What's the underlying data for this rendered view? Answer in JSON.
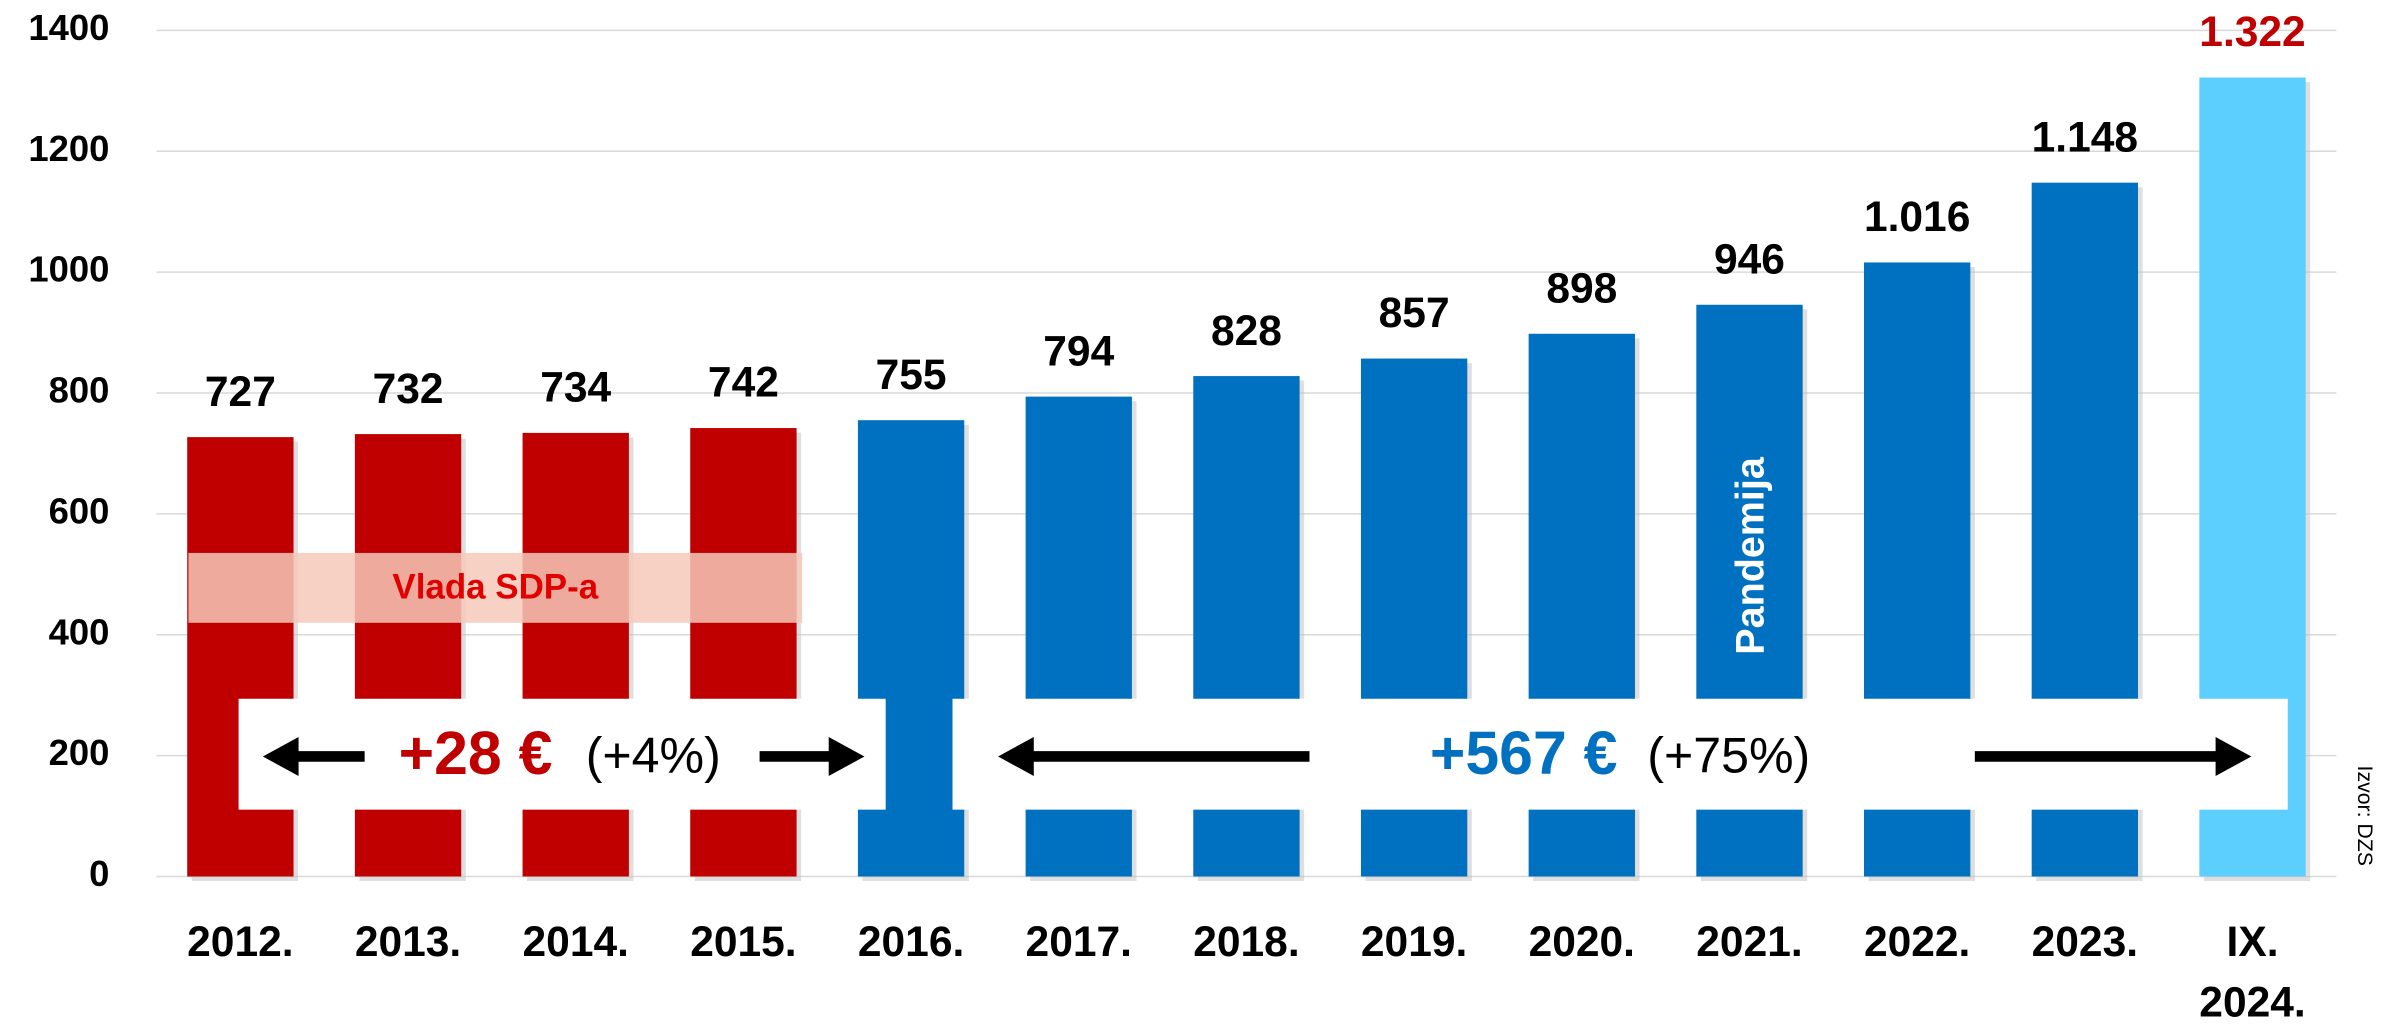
{
  "chart_data": {
    "type": "bar",
    "categories": [
      "2012.",
      "2013.",
      "2014.",
      "2015.",
      "2016.",
      "2017.",
      "2018.",
      "2019.",
      "2020.",
      "2021.",
      "2022.",
      "2023.",
      "IX. 2024."
    ],
    "values": [
      727,
      732,
      734,
      742,
      755,
      794,
      828,
      857,
      898,
      946,
      1016,
      1148,
      1322
    ],
    "value_labels": [
      "727",
      "732",
      "734",
      "742",
      "755",
      "794",
      "828",
      "857",
      "898",
      "946",
      "1.016",
      "1.148",
      "1.322"
    ],
    "colors": [
      "#c00000",
      "#c00000",
      "#c00000",
      "#c00000",
      "#0070c0",
      "#0070c0",
      "#0070c0",
      "#0070c0",
      "#0070c0",
      "#0070c0",
      "#0070c0",
      "#0070c0",
      "#5ccfff"
    ],
    "value_label_colors": [
      "#000000",
      "#000000",
      "#000000",
      "#000000",
      "#000000",
      "#000000",
      "#000000",
      "#000000",
      "#000000",
      "#000000",
      "#000000",
      "#000000",
      "#c00000"
    ],
    "ylim": [
      0,
      1400
    ],
    "yticks": [
      0,
      200,
      400,
      600,
      800,
      1000,
      1200,
      1400
    ],
    "grid": true,
    "annotations": {
      "government": "Vlada SDP-a",
      "pandemic": "Pandemija",
      "change_1_amount": "+28 €",
      "change_1_percent": "(+4%)",
      "change_2_amount": "+567 €",
      "change_2_percent": "(+75%)",
      "source": "Izvor: DZS"
    }
  }
}
